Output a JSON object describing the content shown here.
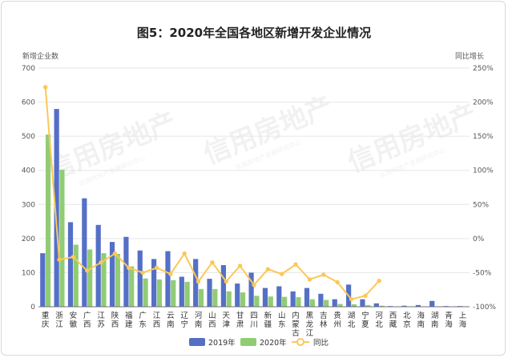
{
  "chart_data": {
    "type": "bar",
    "title": "图5：2020年全国各地区新增开发企业情况",
    "y_left_label": "新增企业数",
    "y_right_label": "同比增长",
    "y_left_ticks": [
      "0",
      "100",
      "200",
      "300",
      "400",
      "500",
      "600",
      "700"
    ],
    "y_right_ticks": [
      "-100%",
      "-50%",
      "0%",
      "50%",
      "100%",
      "150%",
      "200%",
      "250%"
    ],
    "ylim_left": [
      0,
      700
    ],
    "ylim_right": [
      -100,
      250
    ],
    "categories": [
      "重庆",
      "浙江",
      "安徽",
      "广西",
      "江苏",
      "陕西",
      "福建",
      "广东",
      "江西",
      "云南",
      "辽宁",
      "河南",
      "山西",
      "天津",
      "甘肃",
      "四川",
      "新疆",
      "山东",
      "内蒙古",
      "黑龙江",
      "吉林",
      "贵州",
      "湖北",
      "宁夏",
      "河北",
      "西藏",
      "北京",
      "海南",
      "湖南",
      "青海",
      "上海"
    ],
    "series": [
      {
        "name": "2019年",
        "type": "bar",
        "color": "#5470c6",
        "values": [
          157,
          580,
          248,
          318,
          240,
          190,
          205,
          165,
          140,
          163,
          88,
          140,
          82,
          122,
          68,
          100,
          55,
          60,
          45,
          55,
          38,
          22,
          65,
          22,
          10,
          2,
          3,
          5,
          17,
          2,
          2
        ]
      },
      {
        "name": "2020年",
        "type": "bar",
        "color": "#91cc75",
        "values": [
          505,
          402,
          182,
          168,
          157,
          155,
          118,
          83,
          80,
          78,
          73,
          52,
          52,
          45,
          42,
          32,
          30,
          29,
          28,
          22,
          20,
          8,
          7,
          5,
          3,
          0,
          0,
          0,
          0,
          0,
          0
        ]
      },
      {
        "name": "同比",
        "type": "line",
        "color": "#fac858",
        "values": [
          222,
          -31,
          -27,
          -47,
          -35,
          -22,
          -43,
          -50,
          -43,
          -52,
          -22,
          -63,
          -35,
          -63,
          -40,
          -68,
          -45,
          -52,
          -38,
          -60,
          -53,
          -64,
          -89,
          -84,
          -62,
          null,
          null,
          null,
          null,
          null,
          null
        ]
      }
    ],
    "legend": [
      "2019年",
      "2020年",
      "同比"
    ],
    "legend_position": "bottom",
    "grid": true
  },
  "watermark": {
    "main": "信用房地产",
    "sub": "信用房地产发展研究中心"
  }
}
